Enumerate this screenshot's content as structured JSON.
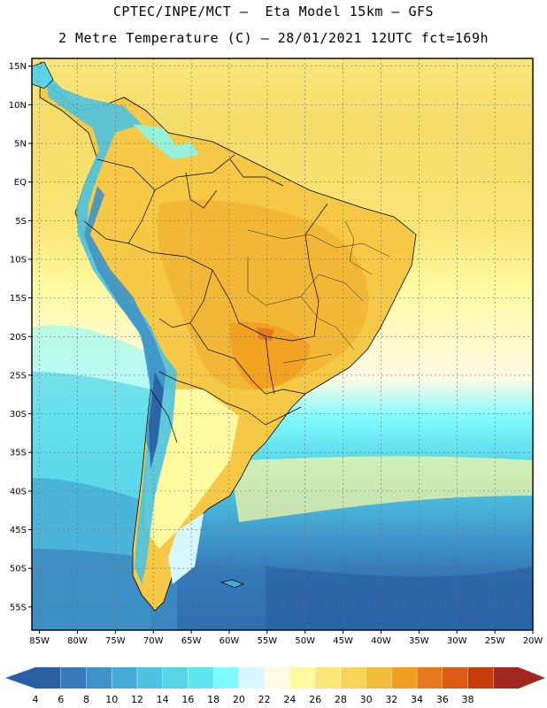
{
  "header": {
    "line1": "CPTEC/INPE/MCT –  Eta Model 15km – GFS",
    "line2": "2 Metre Temperature (C) – 28/01/2021 12UTC fct=169h"
  },
  "map": {
    "lat_labels": [
      "15N",
      "10N",
      "5N",
      "EQ",
      "5S",
      "10S",
      "15S",
      "20S",
      "25S",
      "30S",
      "35S",
      "40S",
      "45S",
      "50S",
      "55S"
    ],
    "lon_labels": [
      "85W",
      "80W",
      "75W",
      "70W",
      "65W",
      "60W",
      "55W",
      "50W",
      "45W",
      "40W",
      "35W",
      "30W",
      "25W",
      "20W"
    ],
    "lat_range": [
      -58,
      16
    ],
    "lon_range": [
      -86,
      -20
    ]
  },
  "colorbar": {
    "values": [
      "4",
      "6",
      "8",
      "10",
      "12",
      "14",
      "16",
      "18",
      "20",
      "22",
      "24",
      "26",
      "28",
      "30",
      "32",
      "34",
      "36",
      "38"
    ],
    "colors": [
      "#2a5fa3",
      "#3579b8",
      "#3f93c8",
      "#45abd6",
      "#4ec2e0",
      "#57d4e6",
      "#5ee6ee",
      "#7ffaff",
      "#d6f7ff",
      "#fffae6",
      "#fffaa0",
      "#fae678",
      "#f5d45a",
      "#f0bc3c",
      "#f0a01e",
      "#e6781e",
      "#dc5a14",
      "#c83c0a",
      "#a0281e"
    ]
  }
}
